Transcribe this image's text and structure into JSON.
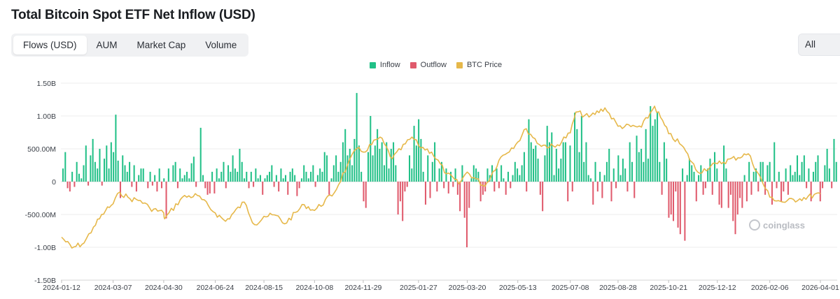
{
  "page": {
    "title": "Total Bitcoin Spot ETF Net Inflow (USD)"
  },
  "tabs": [
    {
      "label": "Flows (USD)",
      "active": true
    },
    {
      "label": "AUM",
      "active": false
    },
    {
      "label": "Market Cap",
      "active": false
    },
    {
      "label": "Volume",
      "active": false
    }
  ],
  "range": {
    "label": "All"
  },
  "watermark": "coinglass",
  "colors": {
    "inflow": "#21c087",
    "outflow": "#e05a6c",
    "btc": "#e6b84a",
    "grid": "#ececec"
  },
  "chart_data": {
    "type": "bar",
    "title": "Total Bitcoin Spot ETF Net Inflow (USD)",
    "legend": [
      "Inflow",
      "Outflow",
      "BTC Price"
    ],
    "legend_position": "top-center",
    "grid": true,
    "y_ticks": [
      {
        "label": "1.50B",
        "value": 1500
      },
      {
        "label": "1.00B",
        "value": 1000
      },
      {
        "label": "500.00M",
        "value": 500
      },
      {
        "label": "0",
        "value": 0
      },
      {
        "label": "-500.00M",
        "value": -500
      },
      {
        "label": "-1.00B",
        "value": -1000
      },
      {
        "label": "-1.50B",
        "value": -1500
      }
    ],
    "ylim": [
      -1500,
      1500
    ],
    "y_unit": "millions USD",
    "x_ticks": [
      "2024-01-12",
      "2024-03-07",
      "2024-04-30",
      "2024-06-24",
      "2024-08-15",
      "2024-10-08",
      "2024-11-29",
      "2025-01-27",
      "2025-03-20",
      "2025-05-13",
      "2025-07-08",
      "2025-08-28",
      "2025-10-21",
      "2025-12-12",
      "2026-02-06",
      "2026-04-01"
    ],
    "flows_millions": [
      200,
      450,
      -100,
      -150,
      150,
      -80,
      300,
      120,
      50,
      250,
      550,
      -60,
      400,
      650,
      300,
      200,
      500,
      -60,
      350,
      550,
      200,
      600,
      450,
      1020,
      320,
      -250,
      400,
      250,
      150,
      300,
      -80,
      250,
      -150,
      100,
      200,
      200,
      0,
      -100,
      150,
      -60,
      100,
      -150,
      200,
      -100,
      50,
      -560,
      200,
      0,
      250,
      300,
      -100,
      200,
      50,
      100,
      150,
      50,
      280,
      380,
      -80,
      0,
      820,
      100,
      -100,
      -200,
      -180,
      150,
      -180,
      200,
      50,
      150,
      300,
      -100,
      250,
      150,
      400,
      200,
      150,
      500,
      300,
      50,
      150,
      -100,
      150,
      -80,
      200,
      50,
      100,
      -200,
      50,
      100,
      150,
      250,
      -80,
      100,
      -150,
      200,
      50,
      100,
      -200,
      150,
      200,
      100,
      -220,
      -100,
      50,
      250,
      150,
      50,
      150,
      250,
      -80,
      100,
      200,
      150,
      450,
      400,
      -200,
      50,
      250,
      400,
      150,
      300,
      600,
      800,
      400,
      500,
      250,
      650,
      1350,
      550,
      150,
      -300,
      -400,
      450,
      1000,
      400,
      550,
      800,
      500,
      600,
      250,
      600,
      200,
      500,
      600,
      250,
      -500,
      -300,
      -600,
      -150,
      -80,
      400,
      200,
      850,
      550,
      950,
      650,
      150,
      -350,
      400,
      -250,
      300,
      600,
      -150,
      200,
      300,
      -100,
      200,
      -180,
      150,
      -80,
      200,
      -200,
      -450,
      250,
      -550,
      -1000,
      -400,
      50,
      250,
      200,
      150,
      -300,
      -200,
      -150,
      200,
      100,
      250,
      -150,
      200,
      -100,
      250,
      50,
      -200,
      150,
      -100,
      100,
      300,
      200,
      100,
      250,
      450,
      -150,
      950,
      600,
      500,
      550,
      350,
      -200,
      -450,
      400,
      850,
      600,
      750,
      100,
      500,
      200,
      350,
      600,
      600,
      -300,
      550,
      -150,
      1050,
      800,
      450,
      1000,
      300,
      600,
      100,
      50,
      -350,
      300,
      -150,
      150,
      -250,
      100,
      300,
      500,
      -300,
      200,
      -100,
      400,
      100,
      350,
      200,
      -150,
      600,
      300,
      -250,
      700,
      450,
      500,
      300,
      800,
      350,
      1150,
      850,
      950,
      1050,
      300,
      -200,
      600,
      350,
      -550,
      -500,
      -600,
      -150,
      -700,
      -800,
      200,
      -900,
      100,
      350,
      250,
      150,
      -300,
      100,
      250,
      -200,
      -100,
      200,
      350,
      -200,
      450,
      200,
      -350,
      -400,
      550,
      200,
      -400,
      -200,
      -600,
      -800,
      -500,
      -250,
      -400,
      100,
      -300,
      300,
      -200,
      150,
      200,
      -150,
      300,
      300,
      -200,
      250,
      300,
      -350,
      600,
      -100,
      150,
      -300,
      -150,
      200,
      -200,
      250,
      100,
      150,
      400,
      100,
      300,
      400,
      -100,
      200,
      -300,
      150,
      300,
      400,
      -300,
      -100,
      250,
      500,
      200,
      -100,
      650,
      300
    ],
    "btc_price_usd": [
      {
        "date": "2024-01-12",
        "price": 46000
      },
      {
        "date": "2024-01-23",
        "price": 39500
      },
      {
        "date": "2024-02-05",
        "price": 42500
      },
      {
        "date": "2024-02-15",
        "price": 52000
      },
      {
        "date": "2024-02-28",
        "price": 62000
      },
      {
        "date": "2024-03-07",
        "price": 66000
      },
      {
        "date": "2024-03-14",
        "price": 73000
      },
      {
        "date": "2024-03-25",
        "price": 69000
      },
      {
        "date": "2024-04-05",
        "price": 68000
      },
      {
        "date": "2024-04-15",
        "price": 63500
      },
      {
        "date": "2024-04-30",
        "price": 60500
      },
      {
        "date": "2024-05-01",
        "price": 57000
      },
      {
        "date": "2024-05-20",
        "price": 70000
      },
      {
        "date": "2024-06-05",
        "price": 71000
      },
      {
        "date": "2024-06-24",
        "price": 60500
      },
      {
        "date": "2024-07-05",
        "price": 55500
      },
      {
        "date": "2024-07-25",
        "price": 67000
      },
      {
        "date": "2024-08-05",
        "price": 53500
      },
      {
        "date": "2024-08-15",
        "price": 58500
      },
      {
        "date": "2024-08-28",
        "price": 59000
      },
      {
        "date": "2024-09-06",
        "price": 54000
      },
      {
        "date": "2024-09-27",
        "price": 65500
      },
      {
        "date": "2024-10-08",
        "price": 62000
      },
      {
        "date": "2024-10-29",
        "price": 72500
      },
      {
        "date": "2024-11-12",
        "price": 89000
      },
      {
        "date": "2024-11-22",
        "price": 99000
      },
      {
        "date": "2024-11-29",
        "price": 97000
      },
      {
        "date": "2024-12-17",
        "price": 106000
      },
      {
        "date": "2024-12-30",
        "price": 93000
      },
      {
        "date": "2025-01-20",
        "price": 106000
      },
      {
        "date": "2025-01-27",
        "price": 101000
      },
      {
        "date": "2025-02-10",
        "price": 97000
      },
      {
        "date": "2025-02-26",
        "price": 84000
      },
      {
        "date": "2025-03-11",
        "price": 78000
      },
      {
        "date": "2025-03-20",
        "price": 85000
      },
      {
        "date": "2025-04-08",
        "price": 76500
      },
      {
        "date": "2025-04-25",
        "price": 94000
      },
      {
        "date": "2025-05-13",
        "price": 103000
      },
      {
        "date": "2025-05-22",
        "price": 111000
      },
      {
        "date": "2025-06-05",
        "price": 101500
      },
      {
        "date": "2025-06-22",
        "price": 100000
      },
      {
        "date": "2025-07-08",
        "price": 108500
      },
      {
        "date": "2025-07-14",
        "price": 121000
      },
      {
        "date": "2025-07-28",
        "price": 118000
      },
      {
        "date": "2025-08-14",
        "price": 123500
      },
      {
        "date": "2025-08-28",
        "price": 112500
      },
      {
        "date": "2025-09-22",
        "price": 112000
      },
      {
        "date": "2025-10-06",
        "price": 124500
      },
      {
        "date": "2025-10-21",
        "price": 108000
      },
      {
        "date": "2025-11-04",
        "price": 101000
      },
      {
        "date": "2025-11-21",
        "price": 85000
      },
      {
        "date": "2025-12-12",
        "price": 90000
      },
      {
        "date": "2026-01-14",
        "price": 96000
      },
      {
        "date": "2026-02-06",
        "price": 70000
      },
      {
        "date": "2026-02-20",
        "price": 67000
      },
      {
        "date": "2026-03-10",
        "price": 69000
      },
      {
        "date": "2026-04-01",
        "price": 72000
      }
    ]
  }
}
